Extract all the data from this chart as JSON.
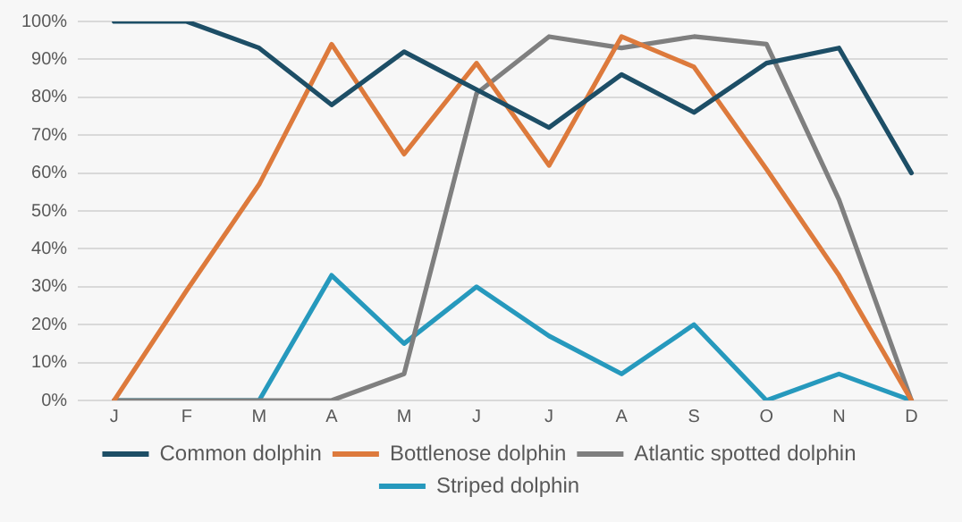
{
  "chart_data": {
    "type": "line",
    "categories": [
      "J",
      "F",
      "M",
      "A",
      "M",
      "J",
      "J",
      "A",
      "S",
      "O",
      "N",
      "D"
    ],
    "series": [
      {
        "name": "Common dolphin",
        "color": "#1d4e66",
        "values": [
          100,
          100,
          93,
          78,
          92,
          82,
          72,
          86,
          76,
          89,
          93,
          60
        ]
      },
      {
        "name": "Bottlenose dolphin",
        "color": "#dd7a3c",
        "values": [
          0,
          29,
          57,
          94,
          65,
          89,
          62,
          96,
          88,
          61,
          33,
          0
        ]
      },
      {
        "name": "Atlantic spotted dolphin",
        "color": "#7f7f7f",
        "values": [
          0,
          0,
          0,
          0,
          7,
          81,
          96,
          93,
          96,
          94,
          53,
          0
        ]
      },
      {
        "name": "Striped dolphin",
        "color": "#2699bd",
        "values": [
          0,
          0,
          0,
          33,
          15,
          30,
          17,
          7,
          20,
          0,
          7,
          0
        ]
      }
    ],
    "ylim": [
      0,
      100
    ],
    "yticks": [
      {
        "value": 0,
        "label": "0%"
      },
      {
        "value": 10,
        "label": "10%"
      },
      {
        "value": 20,
        "label": "20%"
      },
      {
        "value": 30,
        "label": "30%"
      },
      {
        "value": 40,
        "label": "40%"
      },
      {
        "value": 50,
        "label": "50%"
      },
      {
        "value": 60,
        "label": "60%"
      },
      {
        "value": 70,
        "label": "70%"
      },
      {
        "value": 80,
        "label": "80%"
      },
      {
        "value": 90,
        "label": "90%"
      },
      {
        "value": 100,
        "label": "100%"
      }
    ],
    "grid": "y",
    "legend": "bottom",
    "marker": "none",
    "line_style": "solid"
  }
}
